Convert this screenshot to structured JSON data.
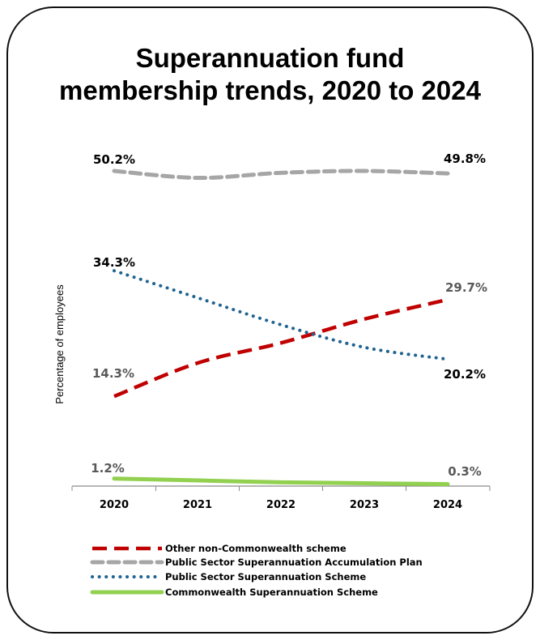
{
  "chart_data": {
    "type": "line",
    "title": "Superannuation fund membership trends, 2020 to 2024",
    "title_lines": [
      "Superannuation fund",
      "membership trends, 2020 to 2024"
    ],
    "xlabel": "",
    "ylabel": "Percentage of employees",
    "categories": [
      "2020",
      "2021",
      "2022",
      "2023",
      "2024"
    ],
    "ylim": [
      0,
      55
    ],
    "grid": false,
    "legend_position": "bottom",
    "series": [
      {
        "name": "Other non-Commonwealth scheme",
        "values": [
          14.3,
          19.6,
          22.8,
          26.6,
          29.7
        ],
        "color": "#c00000",
        "style": "dashed",
        "labels": {
          "start": "14.3%",
          "end": "29.7%"
        },
        "label_colors": {
          "start": "#595959",
          "end": "#595959"
        }
      },
      {
        "name": "Public Sector Superannuation Accumulation Plan",
        "values": [
          50.2,
          49.1,
          49.9,
          50.2,
          49.8
        ],
        "color": "#a6a6a6",
        "style": "dashed",
        "labels": {
          "start": "50.2%",
          "end": "49.8%"
        },
        "label_colors": {
          "start": "#000000",
          "end": "#000000"
        }
      },
      {
        "name": "Public Sector Superannuation Scheme",
        "values": [
          34.3,
          30.0,
          25.7,
          22.1,
          20.2
        ],
        "color": "#1f6391",
        "style": "dotted",
        "labels": {
          "start": "34.3%",
          "end": "20.2%"
        },
        "label_colors": {
          "start": "#000000",
          "end": "#000000"
        }
      },
      {
        "name": "Commonwealth Superannuation Scheme",
        "values": [
          1.2,
          0.9,
          0.6,
          0.45,
          0.3
        ],
        "color": "#92d050",
        "style": "solid",
        "labels": {
          "start": "1.2%",
          "end": "0.3%"
        },
        "label_colors": {
          "start": "#595959",
          "end": "#595959"
        }
      }
    ]
  }
}
